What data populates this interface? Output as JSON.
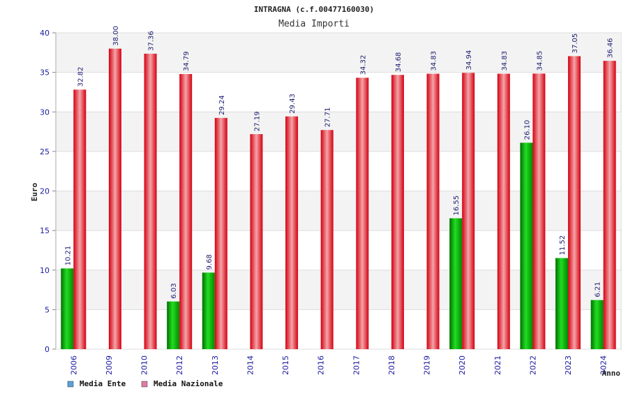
{
  "chart_data": {
    "type": "bar",
    "title": "INTRAGNA (c.f.00477160030)",
    "subtitle": "Media Importi",
    "xlabel": "Anno",
    "ylabel": "Euro",
    "ylim": [
      0,
      40
    ],
    "yticks": [
      "0",
      "5",
      "10",
      "15",
      "20",
      "25",
      "30",
      "35",
      "40"
    ],
    "categories": [
      "2006",
      "2009",
      "2010",
      "2012",
      "2013",
      "2014",
      "2015",
      "2016",
      "2017",
      "2018",
      "2019",
      "2020",
      "2021",
      "2022",
      "2023",
      "2024"
    ],
    "series": [
      {
        "name": "Media Ente",
        "color": "#00aa00",
        "values": [
          10.21,
          null,
          null,
          6.03,
          9.68,
          null,
          null,
          null,
          null,
          null,
          null,
          16.55,
          null,
          26.1,
          11.52,
          6.21
        ],
        "labels": [
          "10.21",
          "",
          "",
          "6.03",
          "9.68",
          "",
          "",
          "",
          "",
          "",
          "",
          "16.55",
          "",
          "26.10",
          "11.52",
          "6.21"
        ]
      },
      {
        "name": "Media Nazionale",
        "color": "#ee1c25",
        "values": [
          32.82,
          38.0,
          37.36,
          34.79,
          29.24,
          27.19,
          29.43,
          27.71,
          34.32,
          34.68,
          34.83,
          34.94,
          34.83,
          34.85,
          37.05,
          36.46
        ],
        "labels": [
          "32.82",
          "38.00",
          "37.36",
          "34.79",
          "29.24",
          "27.19",
          "29.43",
          "27.71",
          "34.32",
          "34.68",
          "34.83",
          "34.94",
          "34.83",
          "34.85",
          "37.05",
          "36.46"
        ]
      }
    ],
    "legend": {
      "placement": "bottom-left",
      "items": [
        {
          "label": "Media Ente",
          "color": "#5aa0e0"
        },
        {
          "label": "Media Nazionale",
          "color": "#e07aa8"
        }
      ]
    },
    "grid": true
  }
}
